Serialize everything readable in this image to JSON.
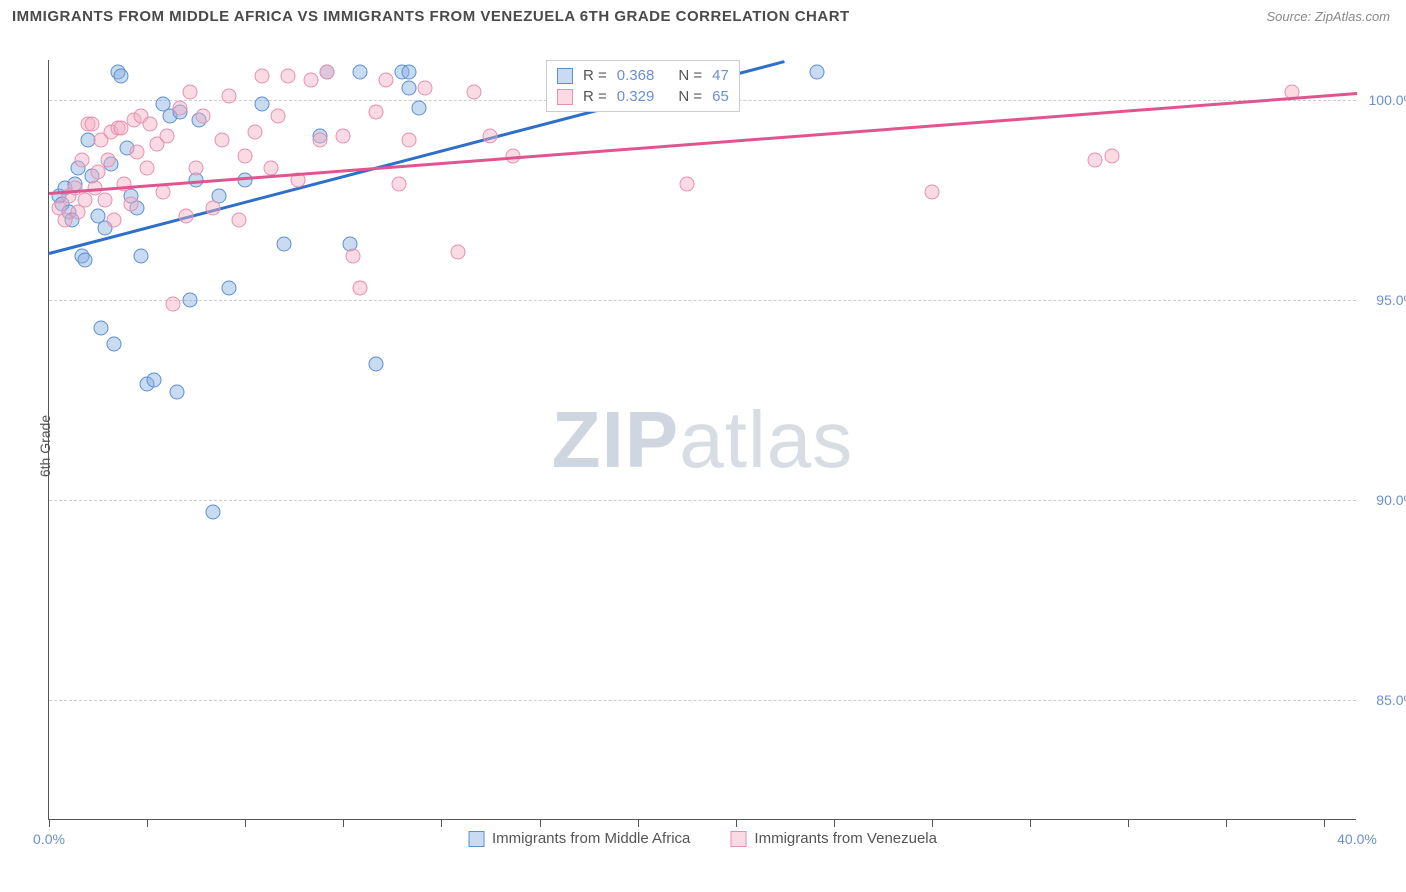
{
  "title": "IMMIGRANTS FROM MIDDLE AFRICA VS IMMIGRANTS FROM VENEZUELA 6TH GRADE CORRELATION CHART",
  "source_label": "Source: ZipAtlas.com",
  "ylabel": "6th Grade",
  "watermark_bold": "ZIP",
  "watermark_light": "atlas",
  "chart": {
    "type": "scatter",
    "xlim": [
      0,
      40
    ],
    "ylim": [
      82,
      101
    ],
    "xtick_labels": {
      "0": "0.0%",
      "40": "40.0%"
    },
    "xtick_positions": [
      0,
      3,
      6,
      9,
      12,
      15,
      18,
      21,
      24,
      27,
      30,
      33,
      36,
      39
    ],
    "ytick_labels": {
      "85": "85.0%",
      "90": "90.0%",
      "95": "95.0%",
      "100": "100.0%"
    },
    "gridlines_y": [
      85,
      90,
      95,
      100
    ],
    "background_color": "#ffffff",
    "grid_color": "#cccccc",
    "axis_color": "#555555",
    "label_color": "#6b8fd4"
  },
  "series": [
    {
      "name": "Immigrants from Middle Africa",
      "fill": "rgba(135,175,225,0.45)",
      "stroke": "#5a8fd0",
      "line_color": "#2e6fc9",
      "R": "0.368",
      "N": "47",
      "trend": {
        "x1": 0,
        "y1": 96.2,
        "x2": 22.5,
        "y2": 101
      },
      "points": [
        [
          0.3,
          97.6
        ],
        [
          0.4,
          97.4
        ],
        [
          0.5,
          97.8
        ],
        [
          0.6,
          97.2
        ],
        [
          0.7,
          97.0
        ],
        [
          0.8,
          97.9
        ],
        [
          0.9,
          98.3
        ],
        [
          1.0,
          96.1
        ],
        [
          1.1,
          96.0
        ],
        [
          1.2,
          99.0
        ],
        [
          1.3,
          98.1
        ],
        [
          1.5,
          97.1
        ],
        [
          1.6,
          94.3
        ],
        [
          1.7,
          96.8
        ],
        [
          1.9,
          98.4
        ],
        [
          2.0,
          93.9
        ],
        [
          2.1,
          100.7
        ],
        [
          2.2,
          100.6
        ],
        [
          2.4,
          98.8
        ],
        [
          2.5,
          97.6
        ],
        [
          2.7,
          97.3
        ],
        [
          2.8,
          96.1
        ],
        [
          3.0,
          92.9
        ],
        [
          3.2,
          93.0
        ],
        [
          3.5,
          99.9
        ],
        [
          3.7,
          99.6
        ],
        [
          3.9,
          92.7
        ],
        [
          4.0,
          99.7
        ],
        [
          4.3,
          95.0
        ],
        [
          4.5,
          98.0
        ],
        [
          4.6,
          99.5
        ],
        [
          5.0,
          89.7
        ],
        [
          5.2,
          97.6
        ],
        [
          5.5,
          95.3
        ],
        [
          6.0,
          98.0
        ],
        [
          6.5,
          99.9
        ],
        [
          7.2,
          96.4
        ],
        [
          8.5,
          100.7
        ],
        [
          8.3,
          99.1
        ],
        [
          9.2,
          96.4
        ],
        [
          9.5,
          100.7
        ],
        [
          10.0,
          93.4
        ],
        [
          10.8,
          100.7
        ],
        [
          11.0,
          100.7
        ],
        [
          11.0,
          100.3
        ],
        [
          11.3,
          99.8
        ],
        [
          23.5,
          100.7
        ]
      ]
    },
    {
      "name": "Immigrants from Venezuela",
      "fill": "rgba(245,175,195,0.45)",
      "stroke": "#e78fb0",
      "line_color": "#e05590",
      "R": "0.329",
      "N": "65",
      "trend": {
        "x1": 0,
        "y1": 97.7,
        "x2": 40,
        "y2": 100.2
      },
      "points": [
        [
          0.3,
          97.3
        ],
        [
          0.5,
          97.0
        ],
        [
          0.6,
          97.6
        ],
        [
          0.8,
          97.8
        ],
        [
          0.9,
          97.2
        ],
        [
          1.0,
          98.5
        ],
        [
          1.1,
          97.5
        ],
        [
          1.2,
          99.4
        ],
        [
          1.3,
          99.4
        ],
        [
          1.4,
          97.8
        ],
        [
          1.5,
          98.2
        ],
        [
          1.6,
          99.0
        ],
        [
          1.7,
          97.5
        ],
        [
          1.8,
          98.5
        ],
        [
          1.9,
          99.2
        ],
        [
          2.0,
          97.0
        ],
        [
          2.1,
          99.3
        ],
        [
          2.2,
          99.3
        ],
        [
          2.3,
          97.9
        ],
        [
          2.5,
          97.4
        ],
        [
          2.6,
          99.5
        ],
        [
          2.7,
          98.7
        ],
        [
          2.8,
          99.6
        ],
        [
          3.0,
          98.3
        ],
        [
          3.1,
          99.4
        ],
        [
          3.3,
          98.9
        ],
        [
          3.5,
          97.7
        ],
        [
          3.6,
          99.1
        ],
        [
          3.8,
          94.9
        ],
        [
          4.0,
          99.8
        ],
        [
          4.2,
          97.1
        ],
        [
          4.3,
          100.2
        ],
        [
          4.5,
          98.3
        ],
        [
          4.7,
          99.6
        ],
        [
          5.0,
          97.3
        ],
        [
          5.3,
          99.0
        ],
        [
          5.5,
          100.1
        ],
        [
          5.8,
          97.0
        ],
        [
          6.0,
          98.6
        ],
        [
          6.3,
          99.2
        ],
        [
          6.5,
          100.6
        ],
        [
          6.8,
          98.3
        ],
        [
          7.0,
          99.6
        ],
        [
          7.3,
          100.6
        ],
        [
          7.6,
          98.0
        ],
        [
          8.0,
          100.5
        ],
        [
          8.3,
          99.0
        ],
        [
          8.5,
          100.7
        ],
        [
          9.0,
          99.1
        ],
        [
          9.3,
          96.1
        ],
        [
          9.5,
          95.3
        ],
        [
          10.0,
          99.7
        ],
        [
          10.3,
          100.5
        ],
        [
          10.7,
          97.9
        ],
        [
          11.0,
          99.0
        ],
        [
          11.5,
          100.3
        ],
        [
          12.5,
          96.2
        ],
        [
          13.0,
          100.2
        ],
        [
          13.5,
          99.1
        ],
        [
          14.2,
          98.6
        ],
        [
          19.5,
          97.9
        ],
        [
          27.0,
          97.7
        ],
        [
          32.0,
          98.5
        ],
        [
          32.5,
          98.6
        ],
        [
          38.0,
          100.2
        ]
      ]
    }
  ],
  "legend_text": {
    "r_prefix": "R =",
    "n_prefix": "N ="
  }
}
